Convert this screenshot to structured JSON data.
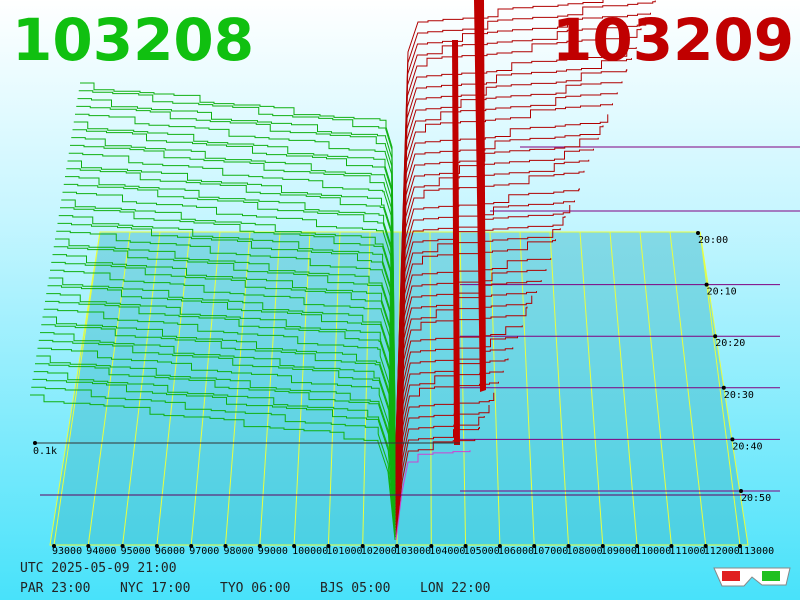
{
  "prices": {
    "bid": "103208",
    "ask": "103209"
  },
  "x_axis": {
    "labels": [
      "93000",
      "94000",
      "95000",
      "96000",
      "97000",
      "98000",
      "99000",
      "100000",
      "101000",
      "102000",
      "103000",
      "104000",
      "105000",
      "106000",
      "107000",
      "108000",
      "109000",
      "110000",
      "111000",
      "112000",
      "113000"
    ]
  },
  "time_axis": {
    "labels": [
      "20:00",
      "20:10",
      "20:20",
      "20:30",
      "20:40",
      "20:50"
    ]
  },
  "depth_label": "0.1k",
  "footer": {
    "utc": "UTC 2025-05-09 21:00",
    "cities": [
      "PAR 23:00",
      "NYC 17:00",
      "TYO 06:00",
      "BJS 05:00",
      "LON 22:00"
    ]
  }
}
